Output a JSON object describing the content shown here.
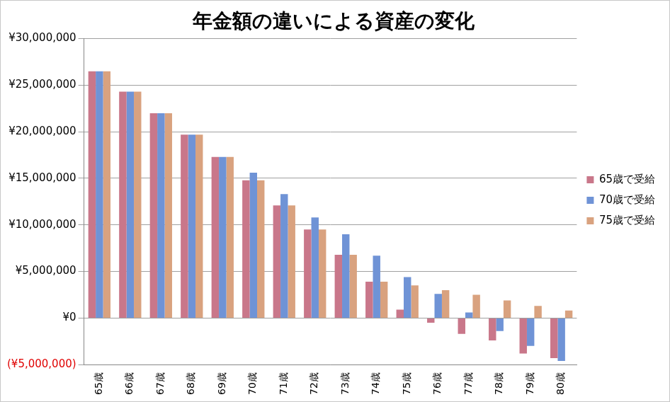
{
  "chart_data": {
    "type": "bar",
    "title": "年金額の違いによる資産の変化",
    "categories": [
      "65歳",
      "66歳",
      "67歳",
      "68歳",
      "69歳",
      "70歳",
      "71歳",
      "72歳",
      "73歳",
      "74歳",
      "75歳",
      "76歳",
      "77歳",
      "78歳",
      "79歳",
      "80歳"
    ],
    "series": [
      {
        "name": "65歳で受給",
        "color": "#c9778a",
        "values": [
          26500000,
          24300000,
          22000000,
          19700000,
          17300000,
          14800000,
          12100000,
          9500000,
          6800000,
          3900000,
          900000,
          -500000,
          -1700000,
          -2400000,
          -3800000,
          -4300000
        ]
      },
      {
        "name": "70歳で受給",
        "color": "#6f93d6",
        "values": [
          26500000,
          24300000,
          22000000,
          19700000,
          17300000,
          15600000,
          13300000,
          10800000,
          9000000,
          6700000,
          4400000,
          2600000,
          600000,
          -1400000,
          -3000000,
          -4600000
        ]
      },
      {
        "name": "75歳で受給",
        "color": "#d9a27f",
        "values": [
          26500000,
          24300000,
          22000000,
          19700000,
          17300000,
          14800000,
          12100000,
          9500000,
          6800000,
          3900000,
          3500000,
          3000000,
          2500000,
          1900000,
          1300000,
          800000
        ]
      }
    ],
    "ylim": [
      -5000000,
      30000000
    ],
    "yticks": [
      {
        "value": -5000000,
        "label": "(¥5,000,000)"
      },
      {
        "value": 0,
        "label": "¥0"
      },
      {
        "value": 5000000,
        "label": "¥5,000,000"
      },
      {
        "value": 10000000,
        "label": "¥10,000,000"
      },
      {
        "value": 15000000,
        "label": "¥15,000,000"
      },
      {
        "value": 20000000,
        "label": "¥20,000,000"
      },
      {
        "value": 25000000,
        "label": "¥25,000,000"
      },
      {
        "value": 30000000,
        "label": "¥30,000,000"
      }
    ],
    "grid": true,
    "legend": "right"
  }
}
